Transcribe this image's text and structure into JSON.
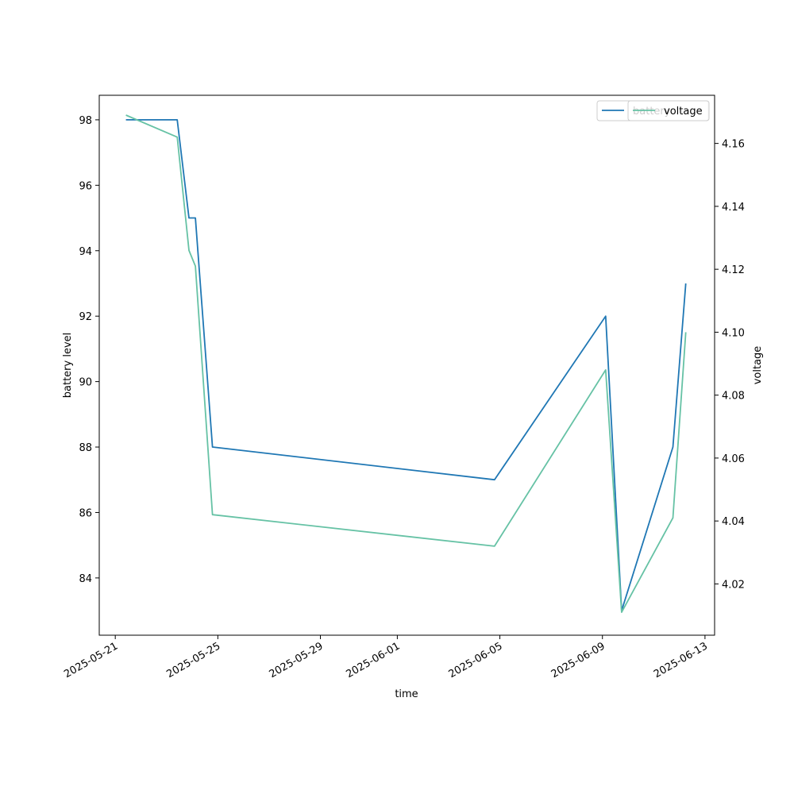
{
  "chart_data": {
    "type": "line",
    "xlabel": "time",
    "ylabel_left": "battery level",
    "ylabel_right": "voltage",
    "x_ticks": [
      "2025-05-21",
      "2025-05-25",
      "2025-05-29",
      "2025-06-01",
      "2025-06-05",
      "2025-06-09",
      "2025-06-13"
    ],
    "x_range": [
      "2025-05-20T09:00",
      "2025-06-13T09:00"
    ],
    "y_left_ticks": [
      84,
      86,
      88,
      90,
      92,
      94,
      96,
      98
    ],
    "y_left_range": [
      82.25,
      98.75
    ],
    "y_right_ticks": [
      4.02,
      4.04,
      4.06,
      4.08,
      4.1,
      4.12,
      4.14,
      4.16
    ],
    "y_right_range": [
      4.0037,
      4.1753
    ],
    "legend_position": "top-right",
    "series": [
      {
        "name": "battery",
        "axis": "left",
        "color": "#1f77b4",
        "points": [
          {
            "x": "2025-05-21T10:00",
            "y": 98
          },
          {
            "x": "2025-05-23T10:00",
            "y": 98
          },
          {
            "x": "2025-05-23T21:00",
            "y": 95
          },
          {
            "x": "2025-05-24T03:00",
            "y": 95
          },
          {
            "x": "2025-05-24T19:00",
            "y": 88
          },
          {
            "x": "2025-06-04T19:00",
            "y": 87
          },
          {
            "x": "2025-06-09T03:00",
            "y": 92
          },
          {
            "x": "2025-06-09T18:00",
            "y": 83
          },
          {
            "x": "2025-06-11T18:00",
            "y": 88
          },
          {
            "x": "2025-06-12T06:00",
            "y": 93
          }
        ]
      },
      {
        "name": "voltage",
        "axis": "right",
        "color": "#66c2a5",
        "points": [
          {
            "x": "2025-05-21T10:00",
            "y": 4.169
          },
          {
            "x": "2025-05-23T10:00",
            "y": 4.162
          },
          {
            "x": "2025-05-23T21:00",
            "y": 4.126
          },
          {
            "x": "2025-05-24T03:00",
            "y": 4.121
          },
          {
            "x": "2025-05-24T19:00",
            "y": 4.042
          },
          {
            "x": "2025-06-04T19:00",
            "y": 4.032
          },
          {
            "x": "2025-06-09T03:00",
            "y": 4.088
          },
          {
            "x": "2025-06-09T18:00",
            "y": 4.011
          },
          {
            "x": "2025-06-11T18:00",
            "y": 4.041
          },
          {
            "x": "2025-06-12T06:00",
            "y": 4.1
          }
        ]
      }
    ]
  }
}
